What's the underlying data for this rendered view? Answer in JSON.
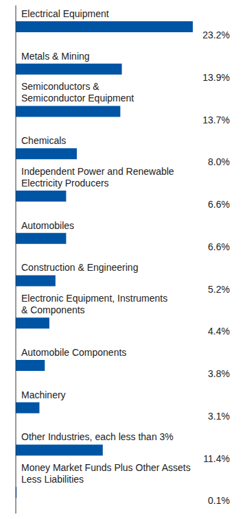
{
  "chart_data": {
    "type": "bar",
    "orientation": "horizontal",
    "categories": [
      "Electrical Equipment",
      "Metals & Mining",
      "Semiconductors &\nSemiconductor Equipment",
      "Chemicals",
      "Independent Power and Renewable\nElectricity Producers",
      "Automobiles",
      "Construction & Engineering",
      "Electronic Equipment, Instruments\n& Components",
      "Automobile Components",
      "Machinery",
      "Other Industries, each less than 3%",
      "Money Market Funds Plus Other Assets\nLess Liabilities"
    ],
    "values": [
      23.2,
      13.9,
      13.7,
      8.0,
      6.6,
      6.6,
      5.2,
      4.4,
      3.8,
      3.1,
      11.4,
      0.1
    ],
    "value_labels": [
      "23.2%",
      "13.9%",
      "13.7%",
      "8.0%",
      "6.6%",
      "6.6%",
      "5.2%",
      "4.4%",
      "3.8%",
      "3.1%",
      "11.4%",
      "0.1%"
    ],
    "color": "#0054a4",
    "data_labels": true,
    "tick_labels": "y"
  }
}
